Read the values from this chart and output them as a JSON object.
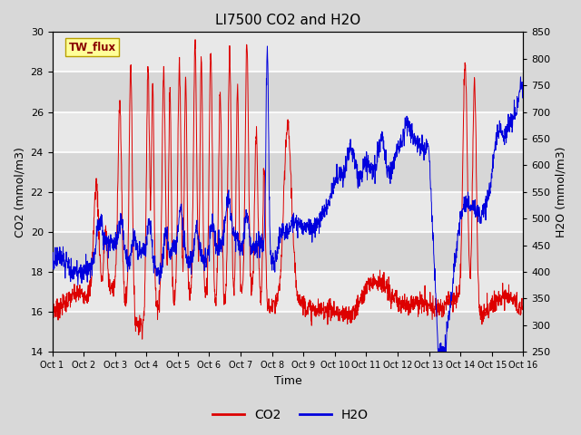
{
  "title": "LI7500 CO2 and H2O",
  "xlabel": "Time",
  "ylabel_left": "CO2 (mmol/m3)",
  "ylabel_right": "H2O (mmol/m3)",
  "legend_label": "TW_flux",
  "co2_label": "CO2",
  "h2o_label": "H2O",
  "xlim": [
    0,
    15
  ],
  "ylim_left": [
    14,
    30
  ],
  "ylim_right": [
    250,
    850
  ],
  "xtick_labels": [
    "Oct 1",
    "Oct 2",
    "Oct 3",
    "Oct 4",
    "Oct 5",
    "Oct 6",
    "Oct 7",
    "Oct 8",
    "Oct 9",
    "Oct 10",
    "Oct 11",
    "Oct 12",
    "Oct 13",
    "Oct 14",
    "Oct 15",
    "Oct 16"
  ],
  "yticks_left": [
    14,
    16,
    18,
    20,
    22,
    24,
    26,
    28,
    30
  ],
  "yticks_right": [
    250,
    300,
    350,
    400,
    450,
    500,
    550,
    600,
    650,
    700,
    750,
    800,
    850
  ],
  "co2_color": "#dd0000",
  "h2o_color": "#0000dd",
  "fig_bg_color": "#d8d8d8",
  "plot_bg_color": "#e8e8e8",
  "grid_band_color": "#d0d0d0",
  "legend_box_facecolor": "#ffff99",
  "legend_box_edgecolor": "#b8a000",
  "legend_text_color": "#880000",
  "n_points": 2000,
  "seed": 7
}
